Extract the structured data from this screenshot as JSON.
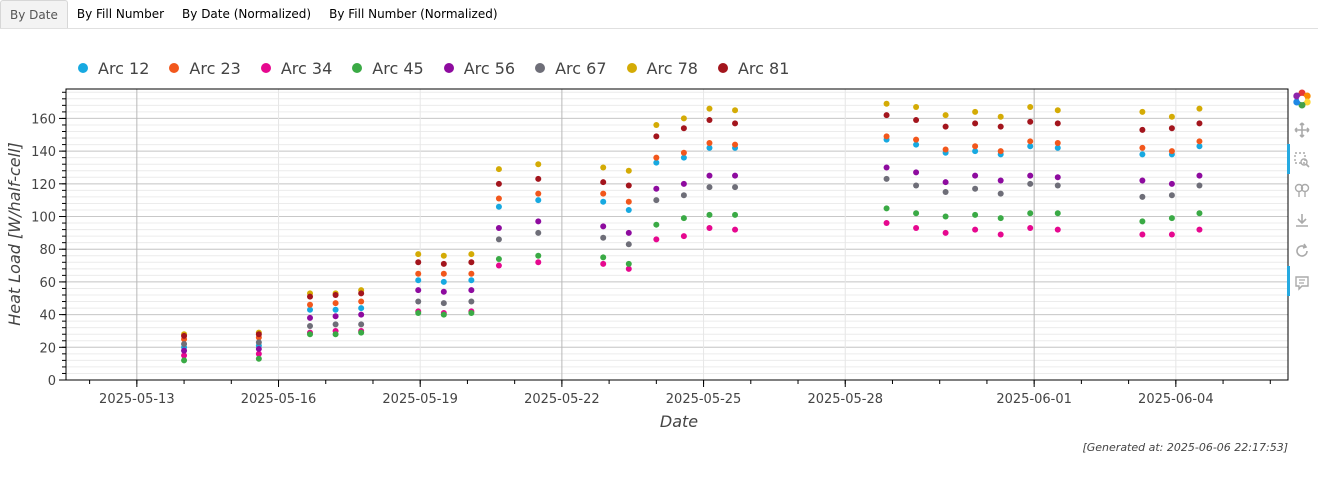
{
  "tabs": [
    {
      "label": "By Date",
      "active": true
    },
    {
      "label": "By Fill Number",
      "active": false
    },
    {
      "label": "By Date (Normalized)",
      "active": false
    },
    {
      "label": "By Fill Number (Normalized)",
      "active": false
    }
  ],
  "toolbar": {
    "logo_icon": "bokeh-logo-icon",
    "tools": [
      "pan-icon",
      "box-zoom-icon",
      "wheel-zoom-icon",
      "save-icon",
      "reset-icon",
      "hover-icon"
    ]
  },
  "footer": {
    "generated": "[Generated at: 2025-06-06 22:17:53]"
  },
  "chart_data": {
    "type": "scatter",
    "xlabel": "Date",
    "ylabel": "Heat Load [W/half-cell]",
    "x_range": [
      "2025-05-11T12:00",
      "2025-06-06T09:00"
    ],
    "ylim": [
      0,
      178
    ],
    "yticks": [
      0,
      20,
      40,
      60,
      80,
      100,
      120,
      140,
      160
    ],
    "xticks": [
      "2025-05-13",
      "2025-05-16",
      "2025-05-19",
      "2025-05-22",
      "2025-05-25",
      "2025-05-28",
      "2025-06-01",
      "2025-06-04"
    ],
    "grid": true,
    "legend_position": "top",
    "x": [
      "2025-05-14T00:00",
      "2025-05-15T14:00",
      "2025-05-16T16:00",
      "2025-05-17T05:00",
      "2025-05-17T18:00",
      "2025-05-18T23:00",
      "2025-05-19T12:00",
      "2025-05-20T02:00",
      "2025-05-20T16:00",
      "2025-05-21T12:00",
      "2025-05-22T21:00",
      "2025-05-23T10:00",
      "2025-05-24T00:00",
      "2025-05-24T14:00",
      "2025-05-25T03:00",
      "2025-05-25T16:00",
      "2025-05-28T21:00",
      "2025-05-29T12:00",
      "2025-05-30T03:00",
      "2025-05-30T18:00",
      "2025-05-31T07:00",
      "2025-05-31T22:00",
      "2025-06-01T12:00",
      "2025-06-03T07:00",
      "2025-06-03T22:00",
      "2025-06-04T12:00"
    ],
    "series": [
      {
        "name": "Arc 12",
        "color": "#17a9e1",
        "values": [
          20,
          21,
          43,
          43,
          44,
          61,
          60,
          61,
          106,
          110,
          109,
          104,
          133,
          136,
          142,
          142,
          147,
          144,
          139,
          140,
          138,
          143,
          142,
          138,
          138,
          143
        ]
      },
      {
        "name": "Arc 23",
        "color": "#f2571c",
        "values": [
          25,
          26,
          46,
          47,
          48,
          65,
          65,
          65,
          111,
          114,
          114,
          109,
          136,
          139,
          145,
          144,
          149,
          147,
          141,
          143,
          140,
          146,
          145,
          142,
          140,
          146
        ]
      },
      {
        "name": "Arc 34",
        "color": "#e6088f",
        "values": [
          15,
          16,
          29,
          30,
          30,
          42,
          41,
          42,
          70,
          72,
          71,
          68,
          86,
          88,
          93,
          92,
          96,
          93,
          90,
          92,
          89,
          93,
          92,
          89,
          89,
          92
        ]
      },
      {
        "name": "Arc 45",
        "color": "#3aaa45",
        "values": [
          12,
          13,
          28,
          28,
          29,
          41,
          40,
          41,
          74,
          76,
          75,
          71,
          95,
          99,
          101,
          101,
          105,
          102,
          100,
          101,
          99,
          102,
          102,
          97,
          99,
          102
        ]
      },
      {
        "name": "Arc 56",
        "color": "#8e0b9f",
        "values": [
          18,
          19,
          38,
          39,
          40,
          55,
          54,
          55,
          93,
          97,
          94,
          90,
          117,
          120,
          125,
          125,
          130,
          127,
          121,
          125,
          122,
          125,
          124,
          122,
          120,
          125
        ]
      },
      {
        "name": "Arc 67",
        "color": "#6e6e78",
        "values": [
          22,
          23,
          33,
          34,
          34,
          48,
          47,
          48,
          86,
          90,
          87,
          83,
          110,
          113,
          118,
          118,
          123,
          119,
          115,
          117,
          114,
          120,
          119,
          112,
          113,
          119
        ]
      },
      {
        "name": "Arc 78",
        "color": "#d4ab05",
        "values": [
          28,
          29,
          53,
          53,
          55,
          77,
          76,
          77,
          129,
          132,
          130,
          128,
          156,
          160,
          166,
          165,
          169,
          167,
          162,
          164,
          161,
          167,
          165,
          164,
          161,
          166
        ]
      },
      {
        "name": "Arc 81",
        "color": "#a3151d",
        "values": [
          27,
          28,
          51,
          52,
          53,
          72,
          71,
          72,
          120,
          123,
          121,
          119,
          149,
          154,
          159,
          157,
          162,
          159,
          155,
          157,
          155,
          158,
          157,
          153,
          154,
          157
        ]
      }
    ]
  }
}
